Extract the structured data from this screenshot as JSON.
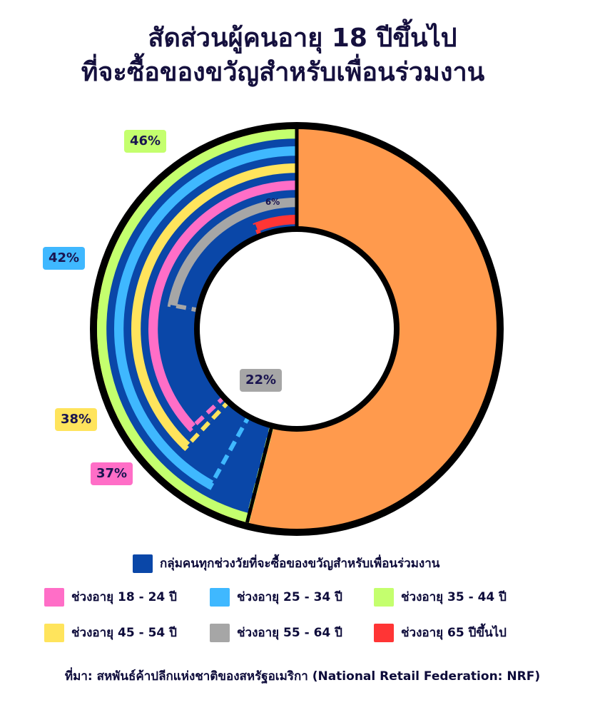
{
  "title": {
    "line1": "สัดส่วนผู้คนอายุ 18 ปีขึ้นไป",
    "line2": "ที่จะซื้อของขวัญสำหรับเพื่อนร่วมงาน"
  },
  "chart_data": {
    "type": "nested-donut",
    "series": [
      {
        "name": "ช่วงอายุ 35 - 44 ปี",
        "value": 46,
        "label": "46%",
        "color": "#c4ff6e"
      },
      {
        "name": "ช่วงอายุ 25 - 34 ปี",
        "value": 42,
        "label": "42%",
        "color": "#3fb8ff"
      },
      {
        "name": "ช่วงอายุ 45 - 54 ปี",
        "value": 38,
        "label": "38%",
        "color": "#ffe45c"
      },
      {
        "name": "ช่วงอายุ 18 - 24 ปี",
        "value": 37,
        "label": "37%",
        "color": "#ff6ec7"
      },
      {
        "name": "ช่วงอายุ 55 - 64 ปี",
        "value": 22,
        "label": "22%",
        "color": "#a6a6a6"
      },
      {
        "name": "ช่วงอายุ 65 ปีขึ้นไป",
        "value": 6,
        "label": "6%",
        "color": "#ff3535"
      }
    ],
    "overall": {
      "name": "กลุ่มคนทุกช่วงวัยที่จะซื้อของขวัญสำหรับเพื่อนร่วมงาน",
      "color": "#0a47a8"
    },
    "remainder_color": "#ff9a4d"
  },
  "legend": {
    "main": "กลุ่มคนทุกช่วงวัยที่จะซื้อของขวัญสำหรับเพื่อนร่วมงาน",
    "items": [
      "ช่วงอายุ 18 - 24 ปี",
      "ช่วงอายุ 25 - 34 ปี",
      "ช่วงอายุ 35 - 44 ปี",
      "ช่วงอายุ 45 - 54 ปี",
      "ช่วงอายุ 55 - 64 ปี",
      "ช่วงอายุ 65 ปีขึ้นไป"
    ]
  },
  "source": "ที่มา: สหพันธ์ค้าปลีกแห่งชาติของสหรัฐอเมริกา (National Retail Federation: NRF)"
}
